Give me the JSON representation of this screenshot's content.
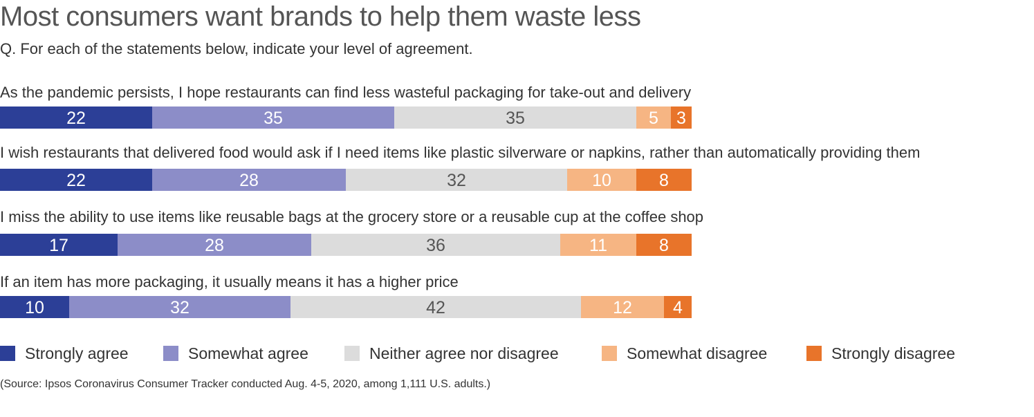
{
  "title": "Most consumers want brands to help them waste less",
  "subtitle": "Q. For each of the statements below, indicate your level of agreement.",
  "source": "(Source: Ipsos Coronavirus Consumer Tracker conducted Aug. 4-5, 2020, among 1,111 U.S. adults.)",
  "legend": [
    {
      "label": "Strongly agree",
      "color": "#2c3f97"
    },
    {
      "label": "Somewhat agree",
      "color": "#8c8dc8"
    },
    {
      "label": "Neither agree nor disagree",
      "color": "#dcdcdc"
    },
    {
      "label": "Somewhat disagree",
      "color": "#f6b583"
    },
    {
      "label": "Strongly disagree",
      "color": "#e8742a"
    }
  ],
  "chart_data": {
    "type": "bar",
    "orientation": "horizontal",
    "stacked": true,
    "categories": [
      "As the pandemic persists, I hope restaurants can find less wasteful packaging for take-out and delivery",
      "I wish restaurants that delivered food would ask if I need items like plastic silverware or napkins, rather than automatically providing them",
      "I miss the ability to use items like reusable bags at the grocery store or a reusable cup at the coffee shop",
      "If an item has more packaging, it usually means it has a higher price"
    ],
    "series": [
      {
        "name": "Strongly agree",
        "color": "#2c3f97",
        "label_color": "#ffffff",
        "values": [
          22,
          22,
          17,
          10
        ]
      },
      {
        "name": "Somewhat agree",
        "color": "#8c8dc8",
        "label_color": "#ffffff",
        "values": [
          35,
          28,
          28,
          32
        ]
      },
      {
        "name": "Neither agree nor disagree",
        "color": "#dcdcdc",
        "label_color": "#555555",
        "values": [
          35,
          32,
          36,
          42
        ]
      },
      {
        "name": "Somewhat disagree",
        "color": "#f6b583",
        "label_color": "#ffffff",
        "values": [
          5,
          10,
          11,
          12
        ]
      },
      {
        "name": "Strongly disagree",
        "color": "#e8742a",
        "label_color": "#ffffff",
        "values": [
          3,
          8,
          8,
          4
        ]
      }
    ],
    "legend_position": "bottom",
    "grid": false
  }
}
